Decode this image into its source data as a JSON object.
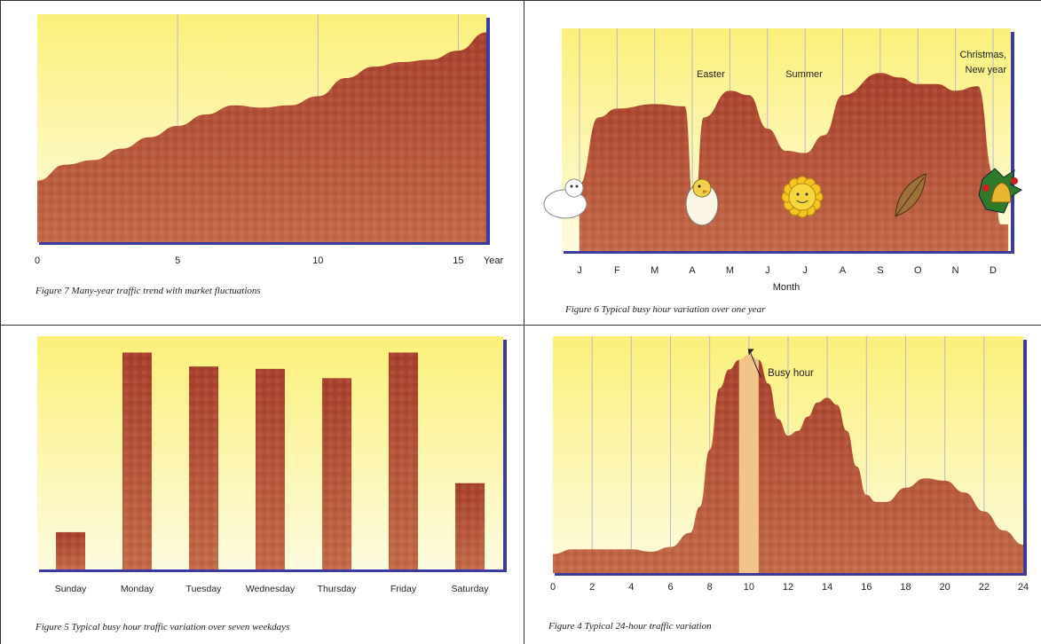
{
  "colors": {
    "sky_top": "#fbf07a",
    "sky_bottom": "#fdfbe0",
    "fill_dark": "#a8402c",
    "fill_mid": "#c46a48",
    "busy_hour_band": "#f2c48a",
    "frame_edge": "#3a3aa0",
    "grid": "#b9b9c8"
  },
  "chart_data": [
    {
      "id": "fig7",
      "type": "area",
      "caption": "Figure 7  Many-year traffic trend with market fluctuations",
      "xlabel": "Year",
      "xlim": [
        0,
        16
      ],
      "ylim": [
        0,
        100
      ],
      "xticks": [
        0,
        5,
        10,
        15
      ],
      "tick_labels": [
        "0",
        "5",
        "10",
        "15"
      ],
      "grid": true,
      "x": [
        0,
        1,
        2,
        3,
        4,
        5,
        6,
        7,
        8,
        9,
        10,
        11,
        12,
        13,
        14,
        15,
        16
      ],
      "values": [
        27,
        34,
        36,
        41,
        46,
        51,
        56,
        60,
        59,
        60,
        64,
        72,
        77,
        79,
        80,
        84,
        92
      ]
    },
    {
      "id": "fig6",
      "type": "area",
      "caption": "Figure 6  Typical busy hour variation over one year",
      "xlabel": "Month",
      "categories": [
        "J",
        "F",
        "M",
        "A",
        "M",
        "J",
        "J",
        "A",
        "S",
        "O",
        "N",
        "D"
      ],
      "ylim": [
        0,
        100
      ],
      "grid": true,
      "x": [
        0,
        0.5,
        1,
        2,
        2.8,
        3.05,
        3.3,
        4,
        4.5,
        5,
        5.5,
        6,
        6.5,
        7,
        8,
        8.5,
        9,
        9.5,
        10,
        10.6,
        11,
        11.2,
        11.4
      ],
      "values": [
        30,
        60,
        64,
        66,
        65,
        15,
        60,
        72,
        70,
        55,
        45,
        44,
        52,
        70,
        80,
        78,
        75,
        75,
        72,
        74,
        35,
        12,
        12
      ],
      "annotations": [
        {
          "label": "Easter",
          "x": 4.2
        },
        {
          "label": "Summer",
          "x": 6.6
        },
        {
          "label": "Christmas,",
          "x": 10.6
        },
        {
          "label": "New year",
          "x": 10.6
        }
      ],
      "icons": [
        "snowman-icon",
        "chick-in-egg-icon",
        "sun-icon",
        "autumn-leaf-icon",
        "christmas-bell-icon"
      ]
    },
    {
      "id": "fig5",
      "type": "bar",
      "caption": "Figure 5  Typical busy hour traffic variation over seven weekdays",
      "categories": [
        "Sunday",
        "Monday",
        "Tuesday",
        "Wednesday",
        "Thursday",
        "Friday",
        "Saturday"
      ],
      "values": [
        16,
        93,
        87,
        86,
        82,
        93,
        37
      ],
      "ylim": [
        0,
        100
      ],
      "grid": false
    },
    {
      "id": "fig4",
      "type": "area",
      "caption": "Figure 4  Typical 24-hour traffic variation",
      "xlim": [
        0,
        24
      ],
      "ylim": [
        0,
        100
      ],
      "xticks": [
        0,
        2,
        4,
        6,
        8,
        10,
        12,
        14,
        16,
        18,
        20,
        22,
        24
      ],
      "tick_labels": [
        "0",
        "2",
        "4",
        "6",
        "8",
        "10",
        "12",
        "14",
        "16",
        "18",
        "20",
        "22",
        "24"
      ],
      "grid": true,
      "x": [
        0,
        1,
        2,
        3,
        4,
        5,
        6,
        7,
        7.5,
        8,
        8.5,
        9,
        9.5,
        10,
        10.5,
        11,
        11.5,
        12,
        12.5,
        13,
        13.5,
        14,
        14.5,
        15,
        15.5,
        16,
        16.5,
        17,
        18,
        19,
        20,
        21,
        22,
        23,
        24
      ],
      "values": [
        8,
        10,
        10,
        10,
        10,
        9,
        11,
        17,
        28,
        52,
        78,
        86,
        90,
        92,
        90,
        80,
        65,
        58,
        60,
        66,
        72,
        74,
        71,
        60,
        45,
        33,
        30,
        30,
        36,
        40,
        39,
        34,
        26,
        18,
        12
      ],
      "highlight": {
        "label": "Busy hour",
        "x_from": 9.5,
        "x_to": 10.5
      }
    }
  ]
}
